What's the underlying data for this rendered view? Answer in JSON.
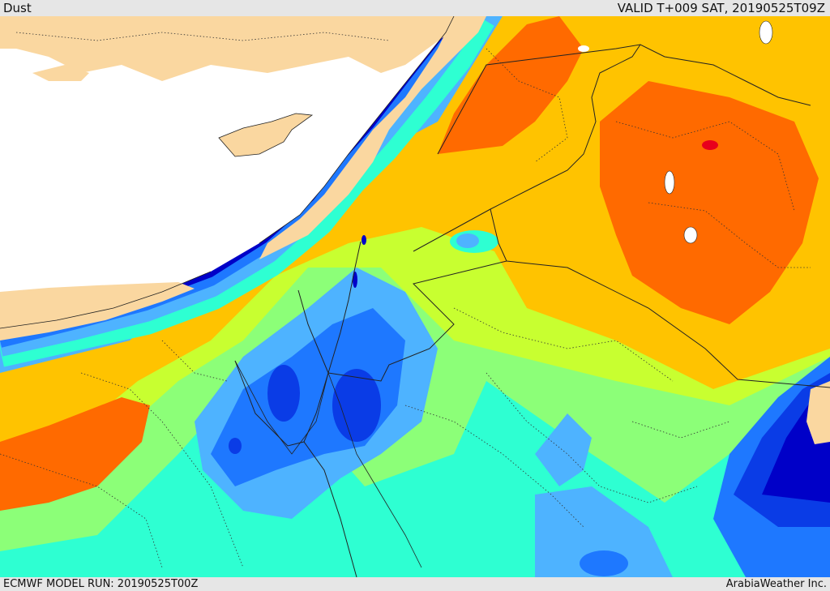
{
  "header": {
    "product": "Dust",
    "valid": "VALID T+009 SAT, 20190525T09Z"
  },
  "footer": {
    "model_run": "ECMWF MODEL RUN: 20190525T00Z",
    "credit": "ArabiaWeather Inc."
  },
  "palette": {
    "land": "#fad7a0",
    "sea": "#ffffff",
    "red": "#e8001c",
    "orange_red": "#ff6a00",
    "orange": "#ffc300",
    "yellow_green": "#c8ff30",
    "light_green": "#8cff78",
    "cyan": "#2effd2",
    "light_blue": "#4eb3ff",
    "blue": "#1e78ff",
    "royal_blue": "#0a3ce6",
    "dark_blue": "#0000c8"
  }
}
